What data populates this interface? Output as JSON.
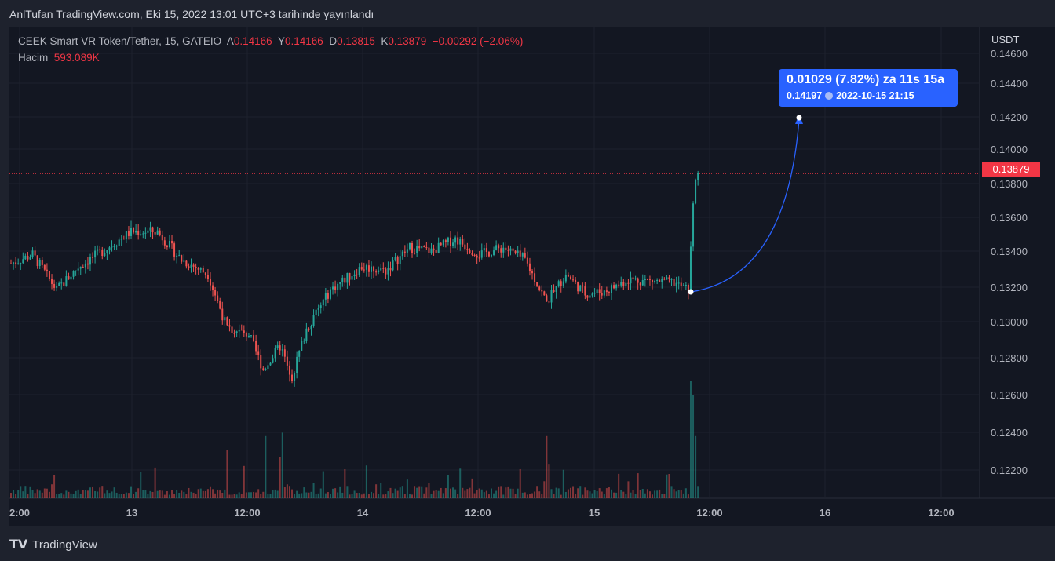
{
  "published": "AnlTufan TradingView.com, Eki 15, 2022 13:01 UTC+3 tarihinde yayınlandı",
  "legend": {
    "symbol": "CEEK Smart VR Token/Tether, 15, GATEIO",
    "o_label": "A",
    "o": "0.14166",
    "h_label": "Y",
    "h": "0.14166",
    "l_label": "D",
    "l": "0.13815",
    "c_label": "K",
    "c": "0.13879",
    "change": "−0.00292 (−2.06%)",
    "volume_label": "Hacim",
    "volume": "593.089K"
  },
  "currency": "USDT",
  "last_price": "0.13879",
  "projection": {
    "line1": "0.01029 (7.82%) za 11s 15a",
    "price": "0.14197",
    "datetime": "2022-10-15  21:15"
  },
  "footer": "TradingView",
  "colors": {
    "up": "#26a69a",
    "down": "#ef5350",
    "accent": "#2962ff"
  },
  "chart_data": {
    "type": "candlestick",
    "y_ticks": [
      "0.14600",
      "0.14400",
      "0.14200",
      "0.14000",
      "0.13800",
      "0.13600",
      "0.13400",
      "0.13200",
      "0.13000",
      "0.12800",
      "0.12600",
      "0.12400",
      "0.12200"
    ],
    "x_ticks": [
      "2:00",
      "13",
      "12:00",
      "14",
      "12:00",
      "15",
      "12:00",
      "16",
      "12:00"
    ],
    "close_anchors": [
      [
        0,
        0.1337
      ],
      [
        9,
        0.1342
      ],
      [
        19,
        0.1322
      ],
      [
        28,
        0.1335
      ],
      [
        38,
        0.1344
      ],
      [
        50,
        0.1355
      ],
      [
        61,
        0.1355
      ],
      [
        71,
        0.1339
      ],
      [
        82,
        0.1331
      ],
      [
        90,
        0.13
      ],
      [
        99,
        0.1297
      ],
      [
        105,
        0.1277
      ],
      [
        112,
        0.129
      ],
      [
        117,
        0.1273
      ],
      [
        123,
        0.13
      ],
      [
        133,
        0.1322
      ],
      [
        146,
        0.1335
      ],
      [
        156,
        0.1333
      ],
      [
        166,
        0.1346
      ],
      [
        175,
        0.1344
      ],
      [
        185,
        0.1351
      ],
      [
        195,
        0.1342
      ],
      [
        205,
        0.1346
      ],
      [
        214,
        0.1339
      ],
      [
        223,
        0.1315
      ],
      [
        231,
        0.1331
      ],
      [
        239,
        0.132
      ],
      [
        247,
        0.1321
      ],
      [
        257,
        0.1328
      ],
      [
        267,
        0.1327
      ],
      [
        276,
        0.1326
      ],
      [
        282,
        0.1322
      ],
      [
        284,
        0.1371
      ],
      [
        285,
        0.1384
      ],
      [
        286,
        0.1388
      ]
    ],
    "volume_spikes": [
      [
        90,
        0.7
      ],
      [
        106,
        0.9
      ],
      [
        112,
        0.6
      ],
      [
        113,
        0.95
      ],
      [
        223,
        0.9
      ],
      [
        283,
        1.7
      ],
      [
        284,
        1.5
      ],
      [
        285,
        0.9
      ]
    ]
  }
}
